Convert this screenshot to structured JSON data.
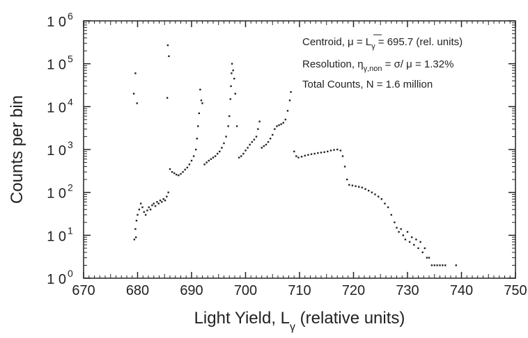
{
  "chart_data": {
    "type": "scatter",
    "title": "",
    "xlabel": "Light Yield, L",
    "xlabel_sub": "γ",
    "xlabel_suffix": " (relative units)",
    "ylabel": "Counts per bin",
    "xlim": [
      670,
      750
    ],
    "ylim_log10": [
      0,
      6
    ],
    "yscale": "log",
    "grid": false,
    "x_ticks": [
      670,
      680,
      690,
      700,
      710,
      720,
      730,
      740,
      750
    ],
    "y_ticks": [
      {
        "base": "1 0",
        "exp": "0"
      },
      {
        "base": "1 0",
        "exp": "1"
      },
      {
        "base": "1 0",
        "exp": "2"
      },
      {
        "base": "1 0",
        "exp": "3"
      },
      {
        "base": "1 0",
        "exp": "4"
      },
      {
        "base": "1 0",
        "exp": "5"
      },
      {
        "base": "1 0",
        "exp": "6"
      }
    ],
    "annotations": {
      "centroid": {
        "label": "Centroid, μ = L",
        "sub": "γ",
        "value": " = 695.7 (rel. units)"
      },
      "resolution": {
        "label": "Resolution, η",
        "sub": "γ,non",
        "value": " = σ/ μ = 1.32%"
      },
      "total": {
        "text": "Total Counts, N = 1.6 million"
      }
    },
    "series": [
      {
        "points": [
          [
            679.3,
            20000
          ],
          [
            679.6,
            60000
          ],
          [
            679.9,
            12000
          ],
          [
            685.5,
            16000
          ],
          [
            685.6,
            270000
          ],
          [
            685.8,
            150000
          ],
          [
            679.4,
            8
          ],
          [
            679.7,
            9
          ],
          [
            679.6,
            14
          ],
          [
            679.8,
            22
          ],
          [
            680.0,
            30
          ],
          [
            680.3,
            40
          ],
          [
            680.6,
            55
          ],
          [
            680.9,
            45
          ],
          [
            681.2,
            35
          ],
          [
            681.5,
            30
          ],
          [
            681.8,
            38
          ],
          [
            682.1,
            45
          ],
          [
            682.4,
            40
          ],
          [
            682.7,
            50
          ],
          [
            683.0,
            55
          ],
          [
            683.3,
            48
          ],
          [
            683.6,
            60
          ],
          [
            683.9,
            55
          ],
          [
            684.2,
            65
          ],
          [
            684.5,
            60
          ],
          [
            684.8,
            70
          ],
          [
            685.1,
            65
          ],
          [
            685.4,
            80
          ],
          [
            685.7,
            100
          ],
          [
            686.0,
            350
          ],
          [
            686.4,
            300
          ],
          [
            686.8,
            280
          ],
          [
            687.2,
            260
          ],
          [
            687.6,
            250
          ],
          [
            688.0,
            270
          ],
          [
            688.4,
            300
          ],
          [
            688.8,
            340
          ],
          [
            689.2,
            380
          ],
          [
            689.6,
            450
          ],
          [
            690.0,
            550
          ],
          [
            690.4,
            700
          ],
          [
            690.8,
            1000
          ],
          [
            691.0,
            1800
          ],
          [
            691.2,
            3500
          ],
          [
            691.4,
            7000
          ],
          [
            691.6,
            25000
          ],
          [
            691.8,
            14000
          ],
          [
            692.0,
            12000
          ],
          [
            692.4,
            450
          ],
          [
            692.8,
            500
          ],
          [
            693.2,
            550
          ],
          [
            693.6,
            600
          ],
          [
            694.0,
            650
          ],
          [
            694.4,
            700
          ],
          [
            694.8,
            800
          ],
          [
            695.2,
            900
          ],
          [
            695.6,
            1100
          ],
          [
            696.0,
            1400
          ],
          [
            696.4,
            2000
          ],
          [
            696.8,
            3500
          ],
          [
            697.0,
            6000
          ],
          [
            697.2,
            15000
          ],
          [
            697.3,
            30000
          ],
          [
            697.4,
            60000
          ],
          [
            697.5,
            100000
          ],
          [
            697.7,
            70000
          ],
          [
            697.9,
            45000
          ],
          [
            698.1,
            20000
          ],
          [
            698.4,
            3500
          ],
          [
            698.8,
            650
          ],
          [
            699.2,
            700
          ],
          [
            699.6,
            800
          ],
          [
            700.0,
            950
          ],
          [
            700.4,
            1100
          ],
          [
            700.8,
            1300
          ],
          [
            701.2,
            1500
          ],
          [
            701.6,
            1700
          ],
          [
            702.0,
            2000
          ],
          [
            702.3,
            3000
          ],
          [
            702.6,
            4500
          ],
          [
            703.0,
            1100
          ],
          [
            703.4,
            1200
          ],
          [
            703.8,
            1300
          ],
          [
            704.2,
            1500
          ],
          [
            704.6,
            1800
          ],
          [
            705.0,
            2200
          ],
          [
            705.4,
            3000
          ],
          [
            705.8,
            3500
          ],
          [
            706.2,
            3700
          ],
          [
            706.6,
            3900
          ],
          [
            707.0,
            4200
          ],
          [
            707.4,
            5000
          ],
          [
            707.8,
            8000
          ],
          [
            708.2,
            14000
          ],
          [
            708.4,
            22000
          ],
          [
            709.0,
            900
          ],
          [
            709.4,
            700
          ],
          [
            709.8,
            650
          ],
          [
            710.4,
            680
          ],
          [
            711.0,
            720
          ],
          [
            711.6,
            750
          ],
          [
            712.2,
            780
          ],
          [
            712.8,
            800
          ],
          [
            713.4,
            830
          ],
          [
            714.0,
            850
          ],
          [
            714.6,
            870
          ],
          [
            715.2,
            900
          ],
          [
            715.8,
            950
          ],
          [
            716.4,
            980
          ],
          [
            717.0,
            1000
          ],
          [
            717.6,
            950
          ],
          [
            718.0,
            700
          ],
          [
            718.4,
            400
          ],
          [
            718.8,
            200
          ],
          [
            719.2,
            150
          ],
          [
            719.8,
            145
          ],
          [
            720.4,
            140
          ],
          [
            721.0,
            135
          ],
          [
            721.6,
            130
          ],
          [
            722.2,
            120
          ],
          [
            722.8,
            110
          ],
          [
            723.4,
            100
          ],
          [
            724.0,
            90
          ],
          [
            724.6,
            80
          ],
          [
            725.2,
            70
          ],
          [
            725.8,
            55
          ],
          [
            726.4,
            45
          ],
          [
            727.0,
            30
          ],
          [
            727.6,
            20
          ],
          [
            728.0,
            15
          ],
          [
            728.4,
            12
          ],
          [
            728.8,
            14
          ],
          [
            729.2,
            10
          ],
          [
            729.6,
            8
          ],
          [
            730.0,
            12
          ],
          [
            730.4,
            7
          ],
          [
            730.8,
            9
          ],
          [
            731.2,
            6
          ],
          [
            731.6,
            8
          ],
          [
            732.0,
            5
          ],
          [
            732.4,
            7
          ],
          [
            732.8,
            4
          ],
          [
            733.2,
            5
          ],
          [
            733.6,
            3
          ],
          [
            734.0,
            3
          ],
          [
            734.5,
            2
          ],
          [
            735.0,
            2
          ],
          [
            735.5,
            2
          ],
          [
            736.0,
            2
          ],
          [
            736.5,
            2
          ],
          [
            737.0,
            2
          ],
          [
            739.0,
            2
          ]
        ]
      }
    ]
  }
}
